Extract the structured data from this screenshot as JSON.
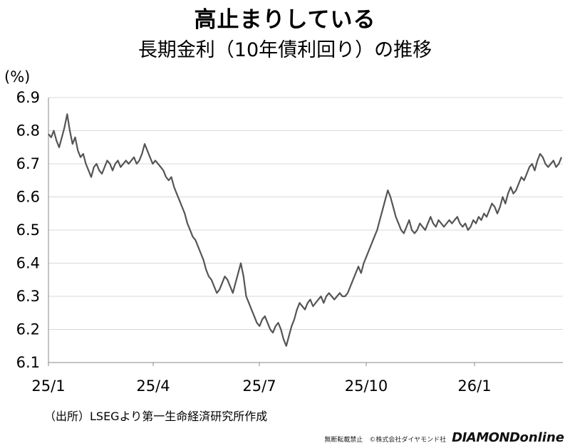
{
  "header": {
    "title": "高止まりしている",
    "subtitle": "長期金利（10年債利回り）の推移"
  },
  "footer": {
    "source": "（出所）LSEGより第一生命経済研究所作成",
    "copyright": "無断転載禁止　©株式会社ダイヤモンド社",
    "brand_main": "DIAMOND",
    "brand_sub": "online"
  },
  "chart_data": {
    "type": "line",
    "title": "長期金利（10年債利回り）の推移",
    "unit_label": "(%)",
    "ylim": [
      6.1,
      6.9
    ],
    "y_ticks": [
      "6.1",
      "6.2",
      "6.3",
      "6.4",
      "6.5",
      "6.6",
      "6.7",
      "6.8",
      "6.9"
    ],
    "x_tick_labels": [
      "25/1",
      "25/4",
      "25/7",
      "25/10",
      "26/1"
    ],
    "grid": "horizontal",
    "colors": {
      "line": "#555555",
      "grid": "#d9d9d9",
      "axis": "#888888"
    },
    "series": [
      {
        "values": [
          6.79,
          6.78,
          6.8,
          6.77,
          6.75,
          6.78,
          6.81,
          6.85,
          6.8,
          6.76,
          6.78,
          6.74,
          6.72,
          6.73,
          6.7,
          6.68,
          6.66,
          6.69,
          6.7,
          6.68,
          6.67,
          6.69,
          6.71,
          6.7,
          6.68,
          6.7,
          6.71,
          6.69,
          6.7,
          6.71,
          6.7,
          6.71,
          6.72,
          6.7,
          6.71,
          6.73,
          6.76,
          6.74,
          6.72,
          6.7,
          6.71,
          6.7,
          6.69,
          6.68,
          6.66,
          6.65,
          6.66,
          6.63,
          6.61,
          6.59,
          6.57,
          6.55,
          6.52,
          6.5,
          6.48,
          6.47,
          6.45,
          6.43,
          6.41,
          6.38,
          6.36,
          6.35,
          6.33,
          6.31,
          6.32,
          6.34,
          6.36,
          6.35,
          6.33,
          6.31,
          6.34,
          6.37,
          6.4,
          6.36,
          6.3,
          6.28,
          6.26,
          6.24,
          6.22,
          6.21,
          6.23,
          6.24,
          6.22,
          6.2,
          6.19,
          6.21,
          6.22,
          6.2,
          6.17,
          6.15,
          6.18,
          6.21,
          6.23,
          6.26,
          6.28,
          6.27,
          6.26,
          6.28,
          6.29,
          6.27,
          6.28,
          6.29,
          6.3,
          6.28,
          6.3,
          6.31,
          6.3,
          6.29,
          6.3,
          6.31,
          6.3,
          6.3,
          6.31,
          6.33,
          6.35,
          6.37,
          6.39,
          6.37,
          6.4,
          6.42,
          6.44,
          6.46,
          6.48,
          6.5,
          6.53,
          6.56,
          6.59,
          6.62,
          6.6,
          6.57,
          6.54,
          6.52,
          6.5,
          6.49,
          6.51,
          6.53,
          6.5,
          6.49,
          6.5,
          6.52,
          6.51,
          6.5,
          6.52,
          6.54,
          6.52,
          6.51,
          6.53,
          6.52,
          6.51,
          6.52,
          6.53,
          6.52,
          6.53,
          6.54,
          6.52,
          6.51,
          6.52,
          6.5,
          6.51,
          6.53,
          6.52,
          6.54,
          6.53,
          6.55,
          6.54,
          6.56,
          6.58,
          6.57,
          6.55,
          6.57,
          6.6,
          6.58,
          6.61,
          6.63,
          6.61,
          6.62,
          6.64,
          6.66,
          6.65,
          6.67,
          6.69,
          6.7,
          6.68,
          6.71,
          6.73,
          6.72,
          6.7,
          6.69,
          6.7,
          6.71,
          6.69,
          6.7,
          6.72
        ]
      }
    ]
  }
}
